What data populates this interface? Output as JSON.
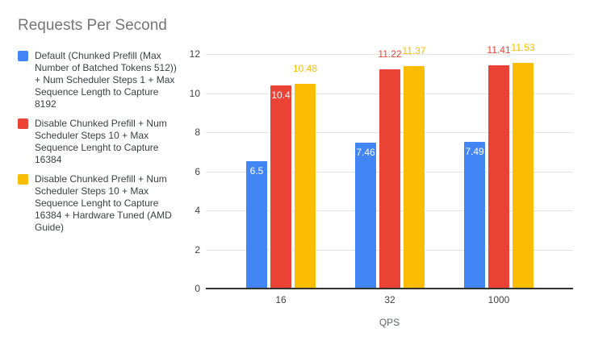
{
  "chart_data": {
    "type": "bar",
    "title": "Requests Per Second",
    "xlabel": "QPS",
    "ylabel": "",
    "categories": [
      "16",
      "32",
      "1000"
    ],
    "series": [
      {
        "name": "Default (Chunked Prefill (Max Number of Batched Tokens 512)) + Num Scheduler Steps 1 + Max Sequence Length to Capture 8192",
        "color": "#4285F4",
        "values": [
          6.5,
          7.46,
          7.49
        ],
        "labels": [
          "6.5",
          "7.46",
          "7.49"
        ],
        "label_placement": [
          "inside",
          "inside",
          "inside"
        ]
      },
      {
        "name": "Disable Chunked Prefill + Num Scheduler Steps 10 + Max Sequence Lenght to Capture 16384",
        "color": "#EA4335",
        "values": [
          10.4,
          11.22,
          11.41
        ],
        "labels": [
          "10.4",
          "11.22",
          "11.41"
        ],
        "label_placement": [
          "inside",
          "above",
          "above"
        ]
      },
      {
        "name": "Disable Chunked Prefill + Num Scheduler Steps 10 + Max Sequence Lenght to Capture 16384 + Hardware Tuned (AMD Guide)",
        "color": "#FBBC04",
        "values": [
          10.48,
          11.37,
          11.53
        ],
        "labels": [
          "10.48",
          "11.37",
          "11.53"
        ],
        "label_placement": [
          "above",
          "above",
          "above"
        ]
      }
    ],
    "ylim": [
      0,
      12
    ],
    "yticks": [
      0,
      2,
      4,
      6,
      8,
      10,
      12
    ],
    "grid": true,
    "legend_position": "left"
  },
  "styles": {
    "background": "#ffffff",
    "title_color": "#757575",
    "legend_text_color": "#3c4043",
    "axis_text_color": "#424242",
    "axis_title_color": "#5f6368",
    "gridline_color": "#e3e3e3",
    "axis_line_color": "#333333",
    "inside_label_color": "#ffffff"
  }
}
